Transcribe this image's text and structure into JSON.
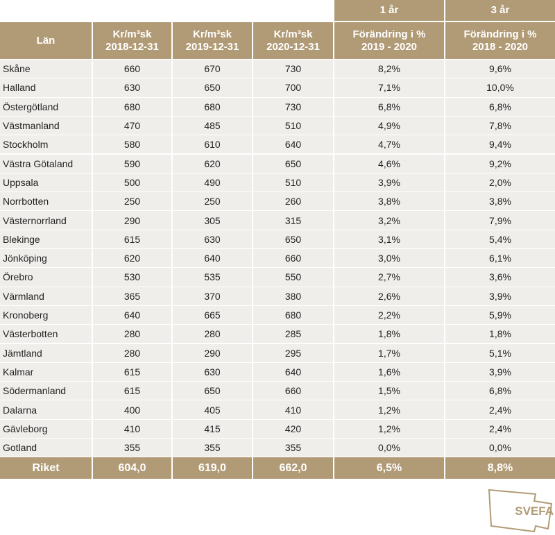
{
  "table": {
    "group_headers": [
      "1 år",
      "3 år"
    ],
    "headers": [
      [
        "Län"
      ],
      [
        "Kr/m³sk",
        "2018-12-31"
      ],
      [
        "Kr/m³sk",
        "2019-12-31"
      ],
      [
        "Kr/m³sk",
        "2020-12-31"
      ],
      [
        "Förändring i %",
        "2019 - 2020"
      ],
      [
        "Förändring i %",
        "2018 - 2020"
      ]
    ],
    "rows": [
      [
        "Skåne",
        "660",
        "670",
        "730",
        "8,2%",
        "9,6%"
      ],
      [
        "Halland",
        "630",
        "650",
        "700",
        "7,1%",
        "10,0%"
      ],
      [
        "Östergötland",
        "680",
        "680",
        "730",
        "6,8%",
        "6,8%"
      ],
      [
        "Västmanland",
        "470",
        "485",
        "510",
        "4,9%",
        "7,8%"
      ],
      [
        "Stockholm",
        "580",
        "610",
        "640",
        "4,7%",
        "9,4%"
      ],
      [
        "Västra Götaland",
        "590",
        "620",
        "650",
        "4,6%",
        "9,2%"
      ],
      [
        "Uppsala",
        "500",
        "490",
        "510",
        "3,9%",
        "2,0%"
      ],
      [
        "Norrbotten",
        "250",
        "250",
        "260",
        "3,8%",
        "3,8%"
      ],
      [
        "Västernorrland",
        "290",
        "305",
        "315",
        "3,2%",
        "7,9%"
      ],
      [
        "Blekinge",
        "615",
        "630",
        "650",
        "3,1%",
        "5,4%"
      ],
      [
        "Jönköping",
        "620",
        "640",
        "660",
        "3,0%",
        "6,1%"
      ],
      [
        "Örebro",
        "530",
        "535",
        "550",
        "2,7%",
        "3,6%"
      ],
      [
        "Värmland",
        "365",
        "370",
        "380",
        "2,6%",
        "3,9%"
      ],
      [
        "Kronoberg",
        "640",
        "665",
        "680",
        "2,2%",
        "5,9%"
      ],
      [
        "Västerbotten",
        "280",
        "280",
        "285",
        "1,8%",
        "1,8%"
      ],
      [
        "Jämtland",
        "280",
        "290",
        "295",
        "1,7%",
        "5,1%"
      ],
      [
        "Kalmar",
        "615",
        "630",
        "640",
        "1,6%",
        "3,9%"
      ],
      [
        "Södermanland",
        "615",
        "650",
        "660",
        "1,5%",
        "6,8%"
      ],
      [
        "Dalarna",
        "400",
        "405",
        "410",
        "1,2%",
        "2,4%"
      ],
      [
        "Gävleborg",
        "410",
        "415",
        "420",
        "1,2%",
        "2,4%"
      ],
      [
        "Gotland",
        "355",
        "355",
        "355",
        "0,0%",
        "0,0%"
      ]
    ],
    "total": [
      "Riket",
      "604,0",
      "619,0",
      "662,0",
      "6,5%",
      "8,8%"
    ]
  },
  "logo": "SVEFA"
}
